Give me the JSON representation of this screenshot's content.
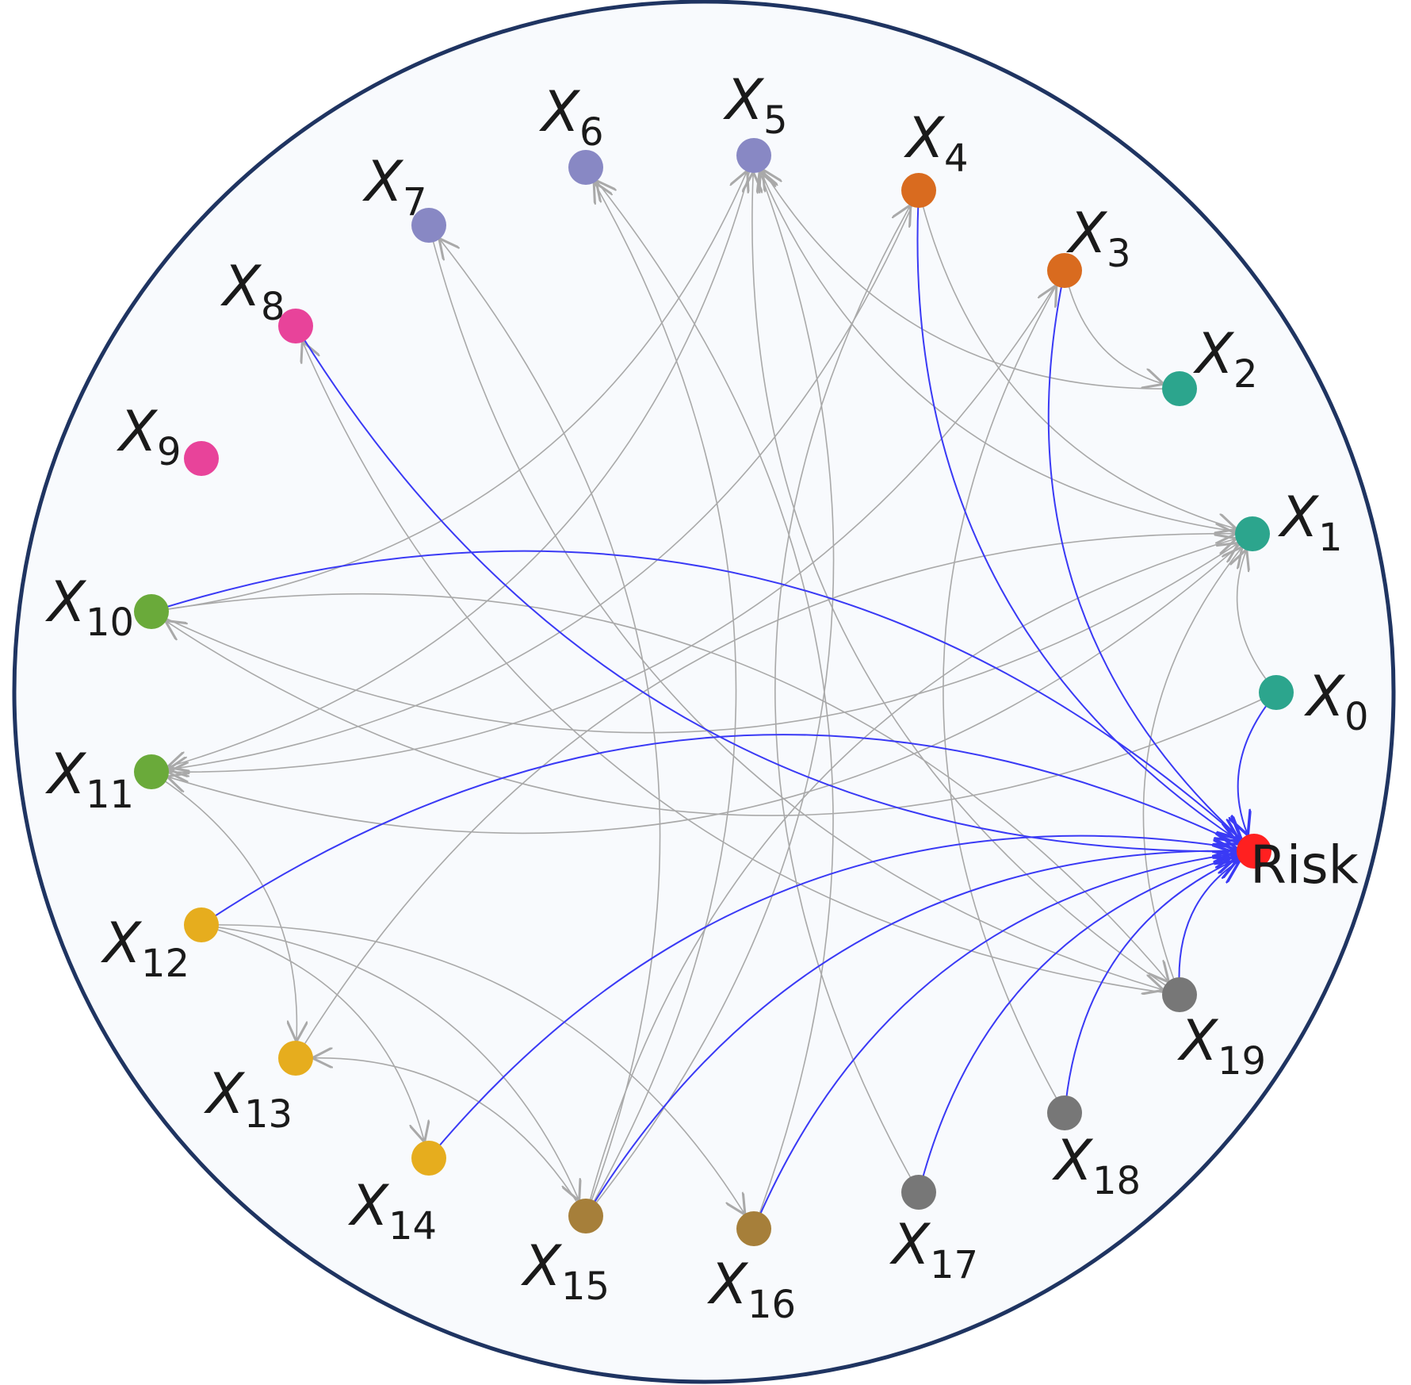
{
  "diagram": {
    "type": "directed-graph-circular",
    "colors": {
      "border": "#1f3461",
      "background": "#f8fafd",
      "edge_default": "#a9a9a9",
      "edge_to_target": "#3a3af5",
      "target_node": "#ff2020"
    },
    "nodes": [
      {
        "id": "X0",
        "base": "X",
        "sub": "0",
        "color": "#2ca58d"
      },
      {
        "id": "X1",
        "base": "X",
        "sub": "1",
        "color": "#2ca58d"
      },
      {
        "id": "X2",
        "base": "X",
        "sub": "2",
        "color": "#2ca58d"
      },
      {
        "id": "X3",
        "base": "X",
        "sub": "3",
        "color": "#d96b1f"
      },
      {
        "id": "X4",
        "base": "X",
        "sub": "4",
        "color": "#d96b1f"
      },
      {
        "id": "X5",
        "base": "X",
        "sub": "5",
        "color": "#8888c4"
      },
      {
        "id": "X6",
        "base": "X",
        "sub": "6",
        "color": "#8888c4"
      },
      {
        "id": "X7",
        "base": "X",
        "sub": "7",
        "color": "#8888c4"
      },
      {
        "id": "X8",
        "base": "X",
        "sub": "8",
        "color": "#e8439a"
      },
      {
        "id": "X9",
        "base": "X",
        "sub": "9",
        "color": "#e8439a"
      },
      {
        "id": "X10",
        "base": "X",
        "sub": "10",
        "color": "#6aaa3a"
      },
      {
        "id": "X11",
        "base": "X",
        "sub": "11",
        "color": "#6aaa3a"
      },
      {
        "id": "X12",
        "base": "X",
        "sub": "12",
        "color": "#e6ad1e"
      },
      {
        "id": "X13",
        "base": "X",
        "sub": "13",
        "color": "#e6ad1e"
      },
      {
        "id": "X14",
        "base": "X",
        "sub": "14",
        "color": "#e6ad1e"
      },
      {
        "id": "X15",
        "base": "X",
        "sub": "15",
        "color": "#a67f3a"
      },
      {
        "id": "X16",
        "base": "X",
        "sub": "16",
        "color": "#a67f3a"
      },
      {
        "id": "X17",
        "base": "X",
        "sub": "17",
        "color": "#777777"
      },
      {
        "id": "X18",
        "base": "X",
        "sub": "18",
        "color": "#777777"
      },
      {
        "id": "X19",
        "base": "X",
        "sub": "19",
        "color": "#777777"
      },
      {
        "id": "Risk",
        "base": "Risk",
        "sub": "",
        "color": "#ff2020",
        "target": true
      }
    ],
    "edges": [
      {
        "from": "X0",
        "to": "Risk"
      },
      {
        "from": "X4",
        "to": "Risk"
      },
      {
        "from": "X3",
        "to": "Risk"
      },
      {
        "from": "X8",
        "to": "Risk"
      },
      {
        "from": "X10",
        "to": "Risk"
      },
      {
        "from": "X12",
        "to": "Risk"
      },
      {
        "from": "X14",
        "to": "Risk"
      },
      {
        "from": "X15",
        "to": "Risk"
      },
      {
        "from": "X16",
        "to": "Risk"
      },
      {
        "from": "X17",
        "to": "Risk"
      },
      {
        "from": "X18",
        "to": "Risk"
      },
      {
        "from": "X19",
        "to": "Risk"
      },
      {
        "from": "X0",
        "to": "X1"
      },
      {
        "from": "X0",
        "to": "X10"
      },
      {
        "from": "X10",
        "to": "X1"
      },
      {
        "from": "X10",
        "to": "X5"
      },
      {
        "from": "X10",
        "to": "X19"
      },
      {
        "from": "X1",
        "to": "X11"
      },
      {
        "from": "X4",
        "to": "X1"
      },
      {
        "from": "X4",
        "to": "X11"
      },
      {
        "from": "X3",
        "to": "X11"
      },
      {
        "from": "X3",
        "to": "X2"
      },
      {
        "from": "X2",
        "to": "X5"
      },
      {
        "from": "X1",
        "to": "X5"
      },
      {
        "from": "X5",
        "to": "X11"
      },
      {
        "from": "X19",
        "to": "X5"
      },
      {
        "from": "X18",
        "to": "X3"
      },
      {
        "from": "X17",
        "to": "X4"
      },
      {
        "from": "X19",
        "to": "X1"
      },
      {
        "from": "X19",
        "to": "X8"
      },
      {
        "from": "X15",
        "to": "X6"
      },
      {
        "from": "X15",
        "to": "X5"
      },
      {
        "from": "X15",
        "to": "X1"
      },
      {
        "from": "X16",
        "to": "X6"
      },
      {
        "from": "X15",
        "to": "X13"
      },
      {
        "from": "X13",
        "to": "X1"
      },
      {
        "from": "X11",
        "to": "X13"
      },
      {
        "from": "X12",
        "to": "X14"
      },
      {
        "from": "X12",
        "to": "X15"
      },
      {
        "from": "X12",
        "to": "X16"
      },
      {
        "from": "X15",
        "to": "X7"
      },
      {
        "from": "X7",
        "to": "X19"
      }
    ]
  }
}
